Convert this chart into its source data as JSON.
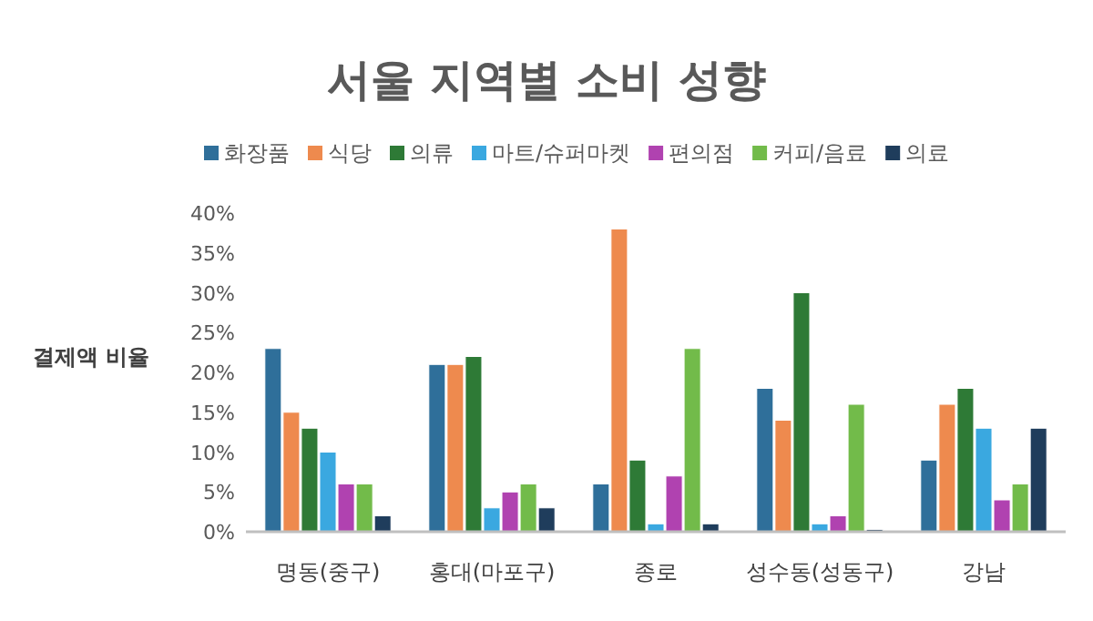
{
  "chart_data": {
    "type": "bar",
    "title": "서울 지역별 소비 성향",
    "ylabel": "결제액 비율",
    "categories": [
      "명동(중구)",
      "홍대(마포구)",
      "종로",
      "성수동(성동구)",
      "강남"
    ],
    "series": [
      {
        "name": "화장품",
        "color": "#2f6f9a",
        "values": [
          23,
          21,
          6,
          18,
          9
        ]
      },
      {
        "name": "식당",
        "color": "#ee8a4e",
        "values": [
          15,
          21,
          38,
          14,
          16
        ]
      },
      {
        "name": "의류",
        "color": "#2e7a36",
        "values": [
          13,
          22,
          9,
          30,
          18
        ]
      },
      {
        "name": "마트/슈퍼마켓",
        "color": "#3aa8e0",
        "values": [
          10,
          3,
          1,
          1,
          13
        ]
      },
      {
        "name": "편의점",
        "color": "#b042b0",
        "values": [
          6,
          5,
          7,
          2,
          4
        ]
      },
      {
        "name": "커피/음료",
        "color": "#72bb4a",
        "values": [
          6,
          6,
          23,
          16,
          6
        ]
      },
      {
        "name": "의료",
        "color": "#1f3d5c",
        "values": [
          2,
          3,
          1,
          0.3,
          13
        ]
      }
    ],
    "ylim": [
      0,
      40
    ],
    "yticks": [
      {
        "value": 0,
        "label": "0%"
      },
      {
        "value": 5,
        "label": "5%"
      },
      {
        "value": 10,
        "label": "10%"
      },
      {
        "value": 15,
        "label": "15%"
      },
      {
        "value": 20,
        "label": "20%"
      },
      {
        "value": 25,
        "label": "25%"
      },
      {
        "value": 30,
        "label": "30%"
      },
      {
        "value": 35,
        "label": "35%"
      },
      {
        "value": 40,
        "label": "40%"
      }
    ],
    "grid": false,
    "legend": "top"
  }
}
